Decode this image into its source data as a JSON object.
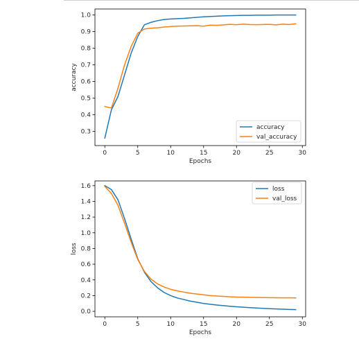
{
  "chart_data": [
    {
      "type": "line",
      "xlabel": "Epochs",
      "ylabel": "accuracy",
      "xlim": [
        -1.5,
        30.5
      ],
      "ylim": [
        0.215,
        1.035
      ],
      "xticks": [
        0,
        5,
        10,
        15,
        20,
        25,
        30
      ],
      "xtick_labels": [
        "0",
        "5",
        "10",
        "15",
        "20",
        "25",
        "30"
      ],
      "yticks": [
        0.3,
        0.4,
        0.5,
        0.6,
        0.7,
        0.8,
        0.9,
        1.0
      ],
      "ytick_labels": [
        "0.3",
        "0.4",
        "0.5",
        "0.6",
        "0.7",
        "0.8",
        "0.9",
        "1.0"
      ],
      "grid": false,
      "legend_position": "lower-right",
      "x": [
        0,
        1,
        2,
        3,
        4,
        5,
        6,
        7,
        8,
        9,
        10,
        11,
        12,
        13,
        14,
        15,
        16,
        17,
        18,
        19,
        20,
        21,
        22,
        23,
        24,
        25,
        26,
        27,
        28,
        29
      ],
      "series": [
        {
          "name": "accuracy",
          "color": "#1f77b4",
          "values": [
            0.26,
            0.43,
            0.51,
            0.64,
            0.77,
            0.87,
            0.94,
            0.955,
            0.965,
            0.972,
            0.975,
            0.977,
            0.979,
            0.982,
            0.985,
            0.988,
            0.99,
            0.992,
            0.994,
            0.995,
            0.996,
            0.997,
            0.997,
            0.998,
            0.998,
            0.998,
            0.999,
            0.999,
            0.999,
            0.999
          ]
        },
        {
          "name": "val_accuracy",
          "color": "#ff7f0e",
          "values": [
            0.45,
            0.44,
            0.56,
            0.7,
            0.81,
            0.89,
            0.915,
            0.92,
            0.922,
            0.927,
            0.93,
            0.932,
            0.933,
            0.934,
            0.935,
            0.932,
            0.938,
            0.937,
            0.94,
            0.943,
            0.941,
            0.944,
            0.942,
            0.941,
            0.942,
            0.943,
            0.94,
            0.944,
            0.942,
            0.946
          ]
        }
      ]
    },
    {
      "type": "line",
      "xlabel": "Epochs",
      "ylabel": "loss",
      "xlim": [
        -1.5,
        30.5
      ],
      "ylim": [
        -0.07,
        1.66
      ],
      "xticks": [
        0,
        5,
        10,
        15,
        20,
        25,
        30
      ],
      "xtick_labels": [
        "0",
        "5",
        "10",
        "15",
        "20",
        "25",
        "30"
      ],
      "yticks": [
        0.0,
        0.2,
        0.4,
        0.6,
        0.8,
        1.0,
        1.2,
        1.4,
        1.6
      ],
      "ytick_labels": [
        "0.0",
        "0.2",
        "0.4",
        "0.6",
        "0.8",
        "1.0",
        "1.2",
        "1.4",
        "1.6"
      ],
      "grid": false,
      "legend_position": "upper-right",
      "x": [
        0,
        1,
        2,
        3,
        4,
        5,
        6,
        7,
        8,
        9,
        10,
        11,
        12,
        13,
        14,
        15,
        16,
        17,
        18,
        19,
        20,
        21,
        22,
        23,
        24,
        25,
        26,
        27,
        28,
        29
      ],
      "series": [
        {
          "name": "loss",
          "color": "#1f77b4",
          "values": [
            1.6,
            1.55,
            1.42,
            1.18,
            0.92,
            0.67,
            0.5,
            0.38,
            0.3,
            0.24,
            0.2,
            0.17,
            0.15,
            0.13,
            0.115,
            0.1,
            0.09,
            0.08,
            0.072,
            0.065,
            0.058,
            0.052,
            0.047,
            0.042,
            0.038,
            0.034,
            0.03,
            0.027,
            0.024,
            0.022
          ]
        },
        {
          "name": "val_loss",
          "color": "#ff7f0e",
          "values": [
            1.59,
            1.5,
            1.35,
            1.12,
            0.88,
            0.66,
            0.51,
            0.41,
            0.35,
            0.31,
            0.28,
            0.26,
            0.245,
            0.23,
            0.22,
            0.21,
            0.2,
            0.195,
            0.19,
            0.185,
            0.182,
            0.18,
            0.178,
            0.176,
            0.175,
            0.174,
            0.173,
            0.172,
            0.172,
            0.171
          ]
        }
      ]
    }
  ]
}
